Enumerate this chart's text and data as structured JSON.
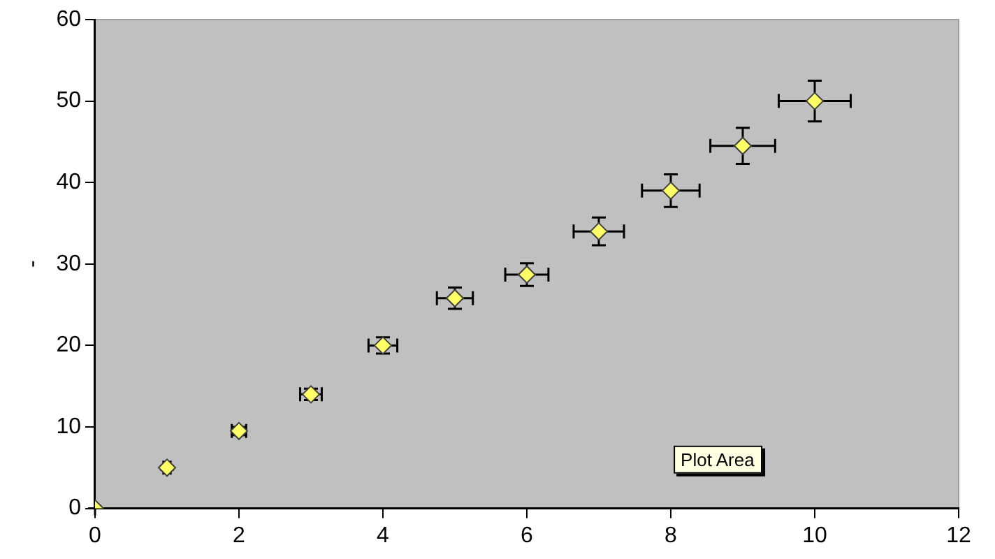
{
  "chart_data": {
    "type": "scatter",
    "ylabel": "-",
    "x": [
      0,
      1,
      2,
      3,
      4,
      5,
      6,
      7,
      8,
      9,
      10
    ],
    "series": [
      {
        "color": "#ffff66",
        "values": [
          0,
          5,
          9.5,
          14,
          20,
          25.8,
          28.7,
          34,
          39,
          44.5,
          50
        ],
        "errors": [
          0,
          0.25,
          0.5,
          0.7,
          1,
          1.3,
          1.4,
          1.7,
          2,
          2.2,
          2.5
        ],
        "xerrors": [
          0,
          0.05,
          0.1,
          0.15,
          0.2,
          0.25,
          0.3,
          0.35,
          0.4,
          0.45,
          0.5
        ]
      }
    ],
    "xlim": [
      0,
      12
    ],
    "xticks": [
      0,
      2,
      4,
      6,
      8,
      10,
      12
    ],
    "ylim": [
      0,
      60
    ],
    "yticks": [
      0,
      10,
      20,
      30,
      40,
      50,
      60
    ],
    "marker": "diamond",
    "legend": false,
    "annotations": [
      "Plot Area"
    ]
  }
}
